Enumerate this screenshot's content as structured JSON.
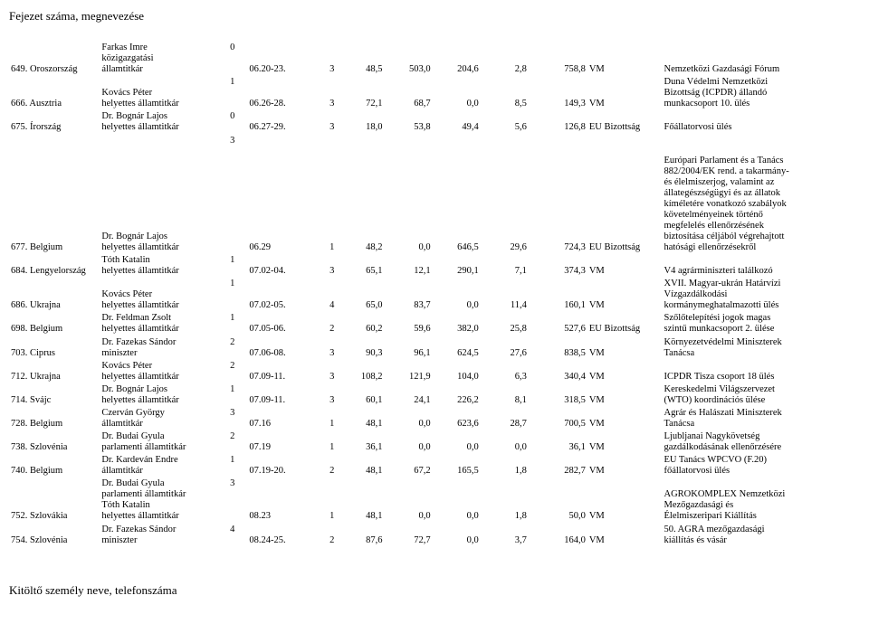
{
  "header": "Fejezet száma, megnevezése",
  "footer": "Kitöltő személy neve, telefonszáma",
  "rows": [
    {
      "id": "649. Oroszország",
      "person": "Farkas Imre\nközigazgatási\nállamtitkár",
      "count": "0",
      "date": "06.20-23.",
      "n1": "3",
      "n2": "48,5",
      "n3": "503,0",
      "n4": "204,6",
      "n5": "2,8",
      "n6": "758,8",
      "org": "VM",
      "purpose": "Nemzetközi Gazdasági Fórum"
    },
    {
      "id": "666. Ausztria",
      "person": "Kovács Péter\nhelyettes államtitkár",
      "count": "1",
      "date": "06.26-28.",
      "n1": "3",
      "n2": "72,1",
      "n3": "68,7",
      "n4": "0,0",
      "n5": "8,5",
      "n6": "149,3",
      "org": "VM",
      "purpose": "Duna Védelmi Nemzetközi\nBizottság (ICPDR) állandó\nmunkacsoport 10. ülés"
    },
    {
      "id": "675. Írország",
      "person": "Dr. Bognár Lajos\nhelyettes államtitkár",
      "count": "0",
      "date": "06.27-29.",
      "n1": "3",
      "n2": "18,0",
      "n3": "53,8",
      "n4": "49,4",
      "n5": "5,6",
      "n6": "126,8",
      "org": "EU Bizottság",
      "purpose": "Főállatorvosi ülés"
    },
    {
      "spacer": true,
      "count": "3"
    },
    {
      "id": "677. Belgium",
      "person": "Dr. Bognár Lajos\nhelyettes államtitkár",
      "count": "",
      "date": "06.29",
      "n1": "1",
      "n2": "48,2",
      "n3": "0,0",
      "n4": "646,5",
      "n5": "29,6",
      "n6": "724,3",
      "org": "EU Bizottság",
      "purpose": "Európari Parlament és a Tanács\n882/2004/EK rend. a takarmány-\nés élelmiszerjog, valamint az\nállategészségügyi és az állatok\nkíméletére vonatkozó szabályok\nkövetelményeinek történő\nmegfelelés ellenőrzésének\nbiztosítása céljából végrehajtott\nhatósági ellenőrzésekről"
    },
    {
      "id": "684. Lengyelország",
      "person": "Tóth Katalin\nhelyettes államtitkár",
      "count": "1",
      "date": "07.02-04.",
      "n1": "3",
      "n2": "65,1",
      "n3": "12,1",
      "n4": "290,1",
      "n5": "7,1",
      "n6": "374,3",
      "org": "VM",
      "purpose": "V4 agrárminiszteri találkozó"
    },
    {
      "id": "686. Ukrajna",
      "person": "Kovács Péter\nhelyettes államtitkár",
      "count": "1",
      "date": "07.02-05.",
      "n1": "4",
      "n2": "65,0",
      "n3": "83,7",
      "n4": "0,0",
      "n5": "11,4",
      "n6": "160,1",
      "org": "VM",
      "purpose": "XVII. Magyar-ukrán Határvízi\nVízgazdálkodási\nkormánymeghatalmazotti ülés"
    },
    {
      "id": "698. Belgium",
      "person": "Dr. Feldman Zsolt\nhelyettes államtitkár",
      "count": "1",
      "date": "07.05-06.",
      "n1": "2",
      "n2": "60,2",
      "n3": "59,6",
      "n4": "382,0",
      "n5": "25,8",
      "n6": "527,6",
      "org": "EU Bizottság",
      "purpose": "Szőlőtelepítési jogok magas\nszintű munkacsoport 2. ülése"
    },
    {
      "id": "703. Ciprus",
      "person": "Dr. Fazekas Sándor\nminiszter",
      "count": "2",
      "date": "07.06-08.",
      "n1": "3",
      "n2": "90,3",
      "n3": "96,1",
      "n4": "624,5",
      "n5": "27,6",
      "n6": "838,5",
      "org": "VM",
      "purpose": "Környezetvédelmi Miniszterek\nTanácsa"
    },
    {
      "id": "712. Ukrajna",
      "person": "Kovács Péter\nhelyettes államtitkár",
      "count": "2",
      "date": "07.09-11.",
      "n1": "3",
      "n2": "108,2",
      "n3": "121,9",
      "n4": "104,0",
      "n5": "6,3",
      "n6": "340,4",
      "org": "VM",
      "purpose": "ICPDR Tisza csoport 18 ülés"
    },
    {
      "id": "714. Svájc",
      "person": "Dr. Bognár Lajos\nhelyettes államtitkár",
      "count": "1",
      "date": "07.09-11.",
      "n1": "3",
      "n2": "60,1",
      "n3": "24,1",
      "n4": "226,2",
      "n5": "8,1",
      "n6": "318,5",
      "org": "VM",
      "purpose": "Kereskedelmi Világszervezet\n(WTO) koordinációs ülése"
    },
    {
      "id": "728. Belgium",
      "person": "Czerván György\nállamtitkár",
      "count": "3",
      "date": "07.16",
      "n1": "1",
      "n2": "48,1",
      "n3": "0,0",
      "n4": "623,6",
      "n5": "28,7",
      "n6": "700,5",
      "org": "VM",
      "purpose": "Agrár és Halászati Miniszterek\nTanácsa"
    },
    {
      "id": "738. Szlovénia",
      "person": "Dr. Budai Gyula\nparlamenti államtitkár",
      "count": "2",
      "date": "07.19",
      "n1": "1",
      "n2": "36,1",
      "n3": "0,0",
      "n4": "0,0",
      "n5": "0,0",
      "n6": "36,1",
      "org": "VM",
      "purpose": "Ljubljanai Nagykövetség\ngazdálkodásának ellenőrzésére"
    },
    {
      "id": "740. Belgium",
      "person": "Dr. Kardeván Endre\nállamtitkár",
      "count": "1",
      "date": "07.19-20.",
      "n1": "2",
      "n2": "48,1",
      "n3": "67,2",
      "n4": "165,5",
      "n5": "1,8",
      "n6": "282,7",
      "org": "VM",
      "purpose": "EU Tanács WPCVO (F.20)\nfőállatorvosi ülés"
    },
    {
      "id": "752. Szlovákia",
      "person": "Dr. Budai Gyula\nparlamenti államtitkár\nTóth Katalin\nhelyettes államtitkár",
      "count": "3",
      "date": "08.23",
      "n1": "1",
      "n2": "48,1",
      "n3": "0,0",
      "n4": "0,0",
      "n5": "1,8",
      "n6": "50,0",
      "org": "VM",
      "purpose": "AGROKOMPLEX Nemzetközi\nMezőgazdasági és\nÉlelmiszeripari Kiállítás"
    },
    {
      "id": "754. Szlovénia",
      "person": "Dr. Fazekas Sándor\nminiszter",
      "count": "4",
      "date": "08.24-25.",
      "n1": "2",
      "n2": "87,6",
      "n3": "72,7",
      "n4": "0,0",
      "n5": "3,7",
      "n6": "164,0",
      "org": "VM",
      "purpose": "50. AGRA mezőgazdasági\nkiállítás és vásár"
    }
  ]
}
